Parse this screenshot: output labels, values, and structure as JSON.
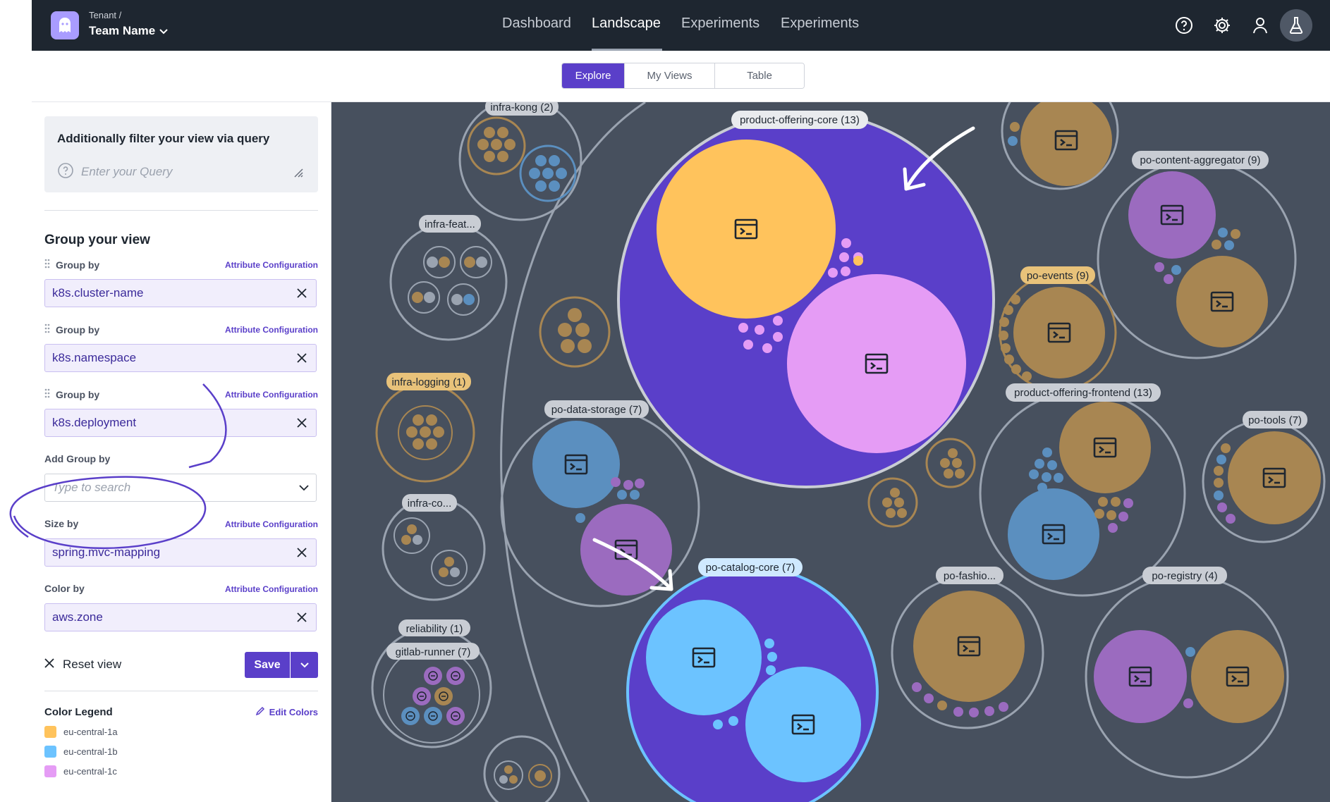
{
  "header": {
    "tenant_label": "Tenant /",
    "team_name": "Team Name",
    "nav": [
      {
        "label": "Dashboard",
        "active": false
      },
      {
        "label": "Landscape",
        "active": true
      },
      {
        "label": "Experiments",
        "active": false
      },
      {
        "label": "Experiments",
        "active": false
      }
    ],
    "icons": [
      "help-icon",
      "gear-icon",
      "user-icon",
      "flask-icon"
    ]
  },
  "view_tabs": [
    {
      "label": "Explore",
      "active": true
    },
    {
      "label": "My Views",
      "active": false
    },
    {
      "label": "Table",
      "active": false
    }
  ],
  "sidebar": {
    "query_title": "Additionally filter your view via query",
    "query_placeholder": "Enter your Query",
    "group_section_title": "Group your view",
    "attr_config_label": "Attribute Configuration",
    "group_by_label": "Group by",
    "groups": [
      "k8s.cluster-name",
      "k8s.namespace",
      "k8s.deployment"
    ],
    "add_group_label": "Add Group by",
    "add_group_placeholder": "Type to search",
    "size_by_label": "Size by",
    "size_by_value": "spring.mvc-mapping",
    "color_by_label": "Color by",
    "color_by_value": "aws.zone",
    "reset_label": "Reset view",
    "save_label": "Save",
    "legend_title": "Color Legend",
    "edit_colors_label": "Edit Colors",
    "legend": [
      {
        "label": "eu-central-1a",
        "color": "#ffc35c"
      },
      {
        "label": "eu-central-1b",
        "color": "#6cc3ff"
      },
      {
        "label": "eu-central-1c",
        "color": "#e59cf5"
      }
    ]
  },
  "colors": {
    "accent": "#5a3fc9",
    "canvas": "#47505e",
    "gold": "#a88652",
    "blue_node": "#5b8fbf",
    "purple_node": "#9b6bbf"
  },
  "bubbles": {
    "infra_kong": "infra-kong (2)",
    "product_offering_core": "product-offering-core (13)",
    "po_content_aggregator": "po-content-aggregator (9)",
    "infra_feat": "infra-feat...",
    "po_events": "po-events (9)",
    "infra_logging": "infra-logging (1)",
    "po_data_storage": "po-data-storage (7)",
    "product_offering_frontend": "product-offering-frontend (13)",
    "po_tools": "po-tools (7)",
    "infra_co": "infra-co...",
    "po_catalog_core": "po-catalog-core (7)",
    "po_fashio": "po-fashio...",
    "po_registry": "po-registry (4)",
    "reliability": "reliability (1)",
    "gitlab_runner": "gitlab-runner (7)"
  }
}
